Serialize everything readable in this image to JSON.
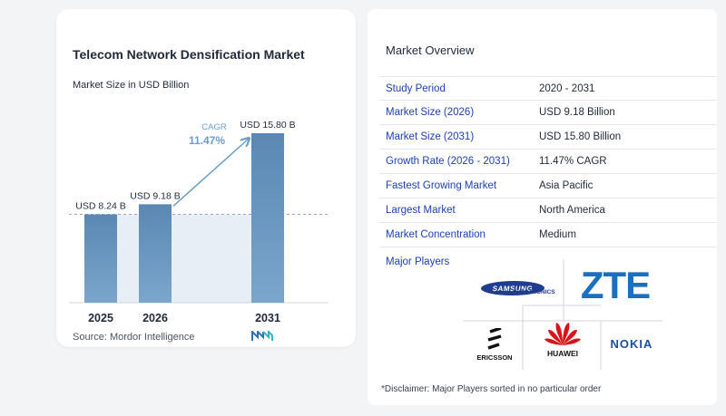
{
  "chart_data": {
    "type": "bar",
    "title": "Telecom Network Densification Market",
    "subtitle": "Market Size in USD Billion",
    "categories": [
      "2025",
      "2026",
      "2031"
    ],
    "values": [
      8.24,
      9.18,
      15.8
    ],
    "value_labels": [
      "USD 8.24 B",
      "USD 9.18 B",
      "USD 15.80 B"
    ],
    "cagr_label": "CAGR",
    "cagr_value": "11.47%",
    "ylim": [
      0,
      15.8
    ],
    "colors": {
      "bar": "#5b8fb9",
      "bar_gradient_top": "#4f7fae",
      "band": "#e8eef5",
      "arrow": "#6a9dc8",
      "cagr_text": "#6a9dc8"
    }
  },
  "source": "Source:",
  "source_name": "Mordor Intelligence",
  "overview": {
    "title": "Market Overview",
    "rows": [
      {
        "label": "Study Period",
        "value": "2020 - 2031"
      },
      {
        "label": "Market Size (2026)",
        "value": "USD 9.18 Billion"
      },
      {
        "label": "Market Size (2031)",
        "value": "USD 15.80 Billion"
      },
      {
        "label": "Growth Rate (2026 - 2031)",
        "value": "11.47% CAGR"
      },
      {
        "label": "Fastest Growing Market",
        "value": "Asia Pacific"
      },
      {
        "label": "Largest Market",
        "value": "North America"
      },
      {
        "label": "Market Concentration",
        "value": "Medium"
      }
    ]
  },
  "players": {
    "title": "Major Players",
    "logos": [
      "SAMSUNG",
      "ELECTRONICS",
      "ZTE",
      "ERICSSON",
      "HUAWEI",
      "NOKIA"
    ]
  },
  "disclaimer": "*Disclaimer: Major Players sorted in no particular order"
}
